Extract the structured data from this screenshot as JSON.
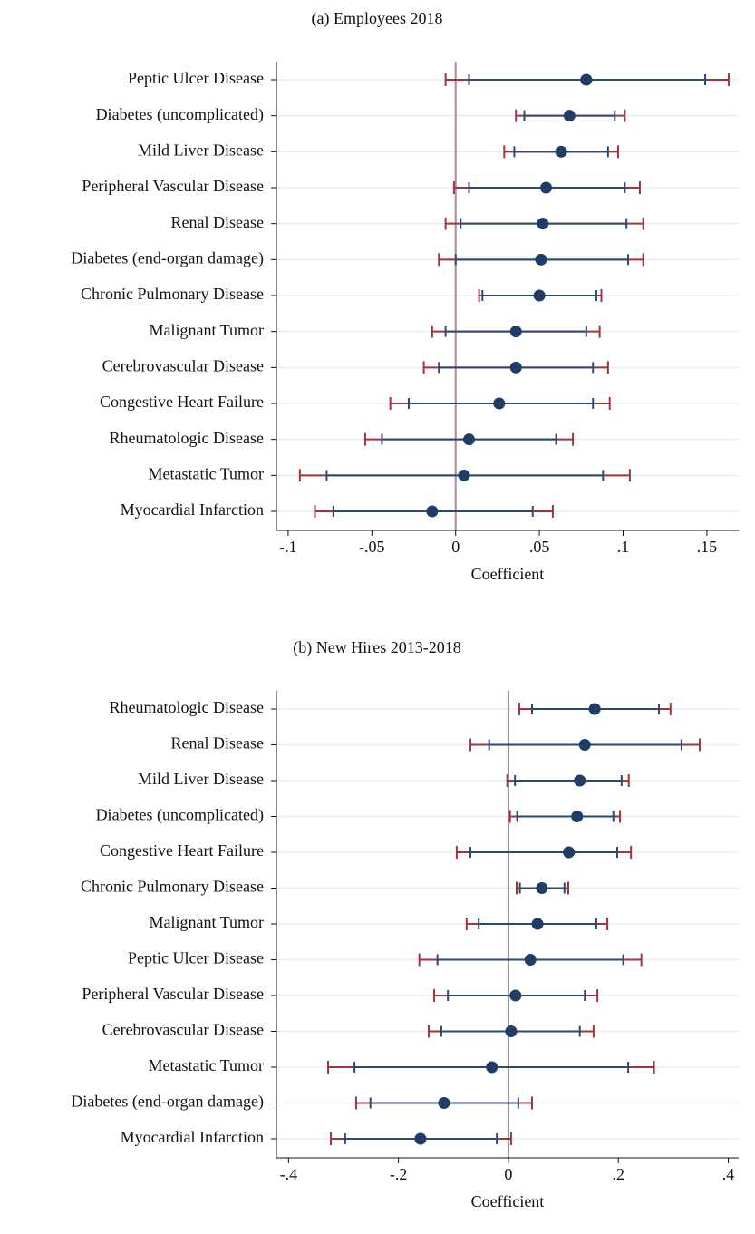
{
  "chart_data": [
    {
      "type": "coefplot",
      "title": "(a) Employees 2018",
      "xlabel": "Coefficient",
      "categories": [
        "Peptic Ulcer Disease",
        "Diabetes (uncomplicated)",
        "Mild Liver Disease",
        "Peripheral Vascular Disease",
        "Renal Disease",
        "Diabetes (end-organ damage)",
        "Chronic Pulmonary Disease",
        "Malignant Tumor",
        "Cerebrovascular Disease",
        "Congestive Heart Failure",
        "Rheumatologic Disease",
        "Metastatic Tumor",
        "Myocardial Infarction"
      ],
      "values": [
        0.078,
        0.068,
        0.063,
        0.054,
        0.052,
        0.051,
        0.05,
        0.036,
        0.036,
        0.026,
        0.008,
        0.005,
        -0.014
      ],
      "inner_low": [
        0.008,
        0.041,
        0.035,
        0.008,
        0.003,
        0.0,
        0.016,
        -0.006,
        -0.01,
        -0.028,
        -0.044,
        -0.077,
        -0.073
      ],
      "inner_high": [
        0.149,
        0.095,
        0.091,
        0.101,
        0.102,
        0.103,
        0.084,
        0.078,
        0.082,
        0.082,
        0.06,
        0.088,
        0.046
      ],
      "outer_low": [
        -0.006,
        0.036,
        0.029,
        -0.001,
        -0.006,
        -0.01,
        0.014,
        -0.014,
        -0.019,
        -0.039,
        -0.054,
        -0.093,
        -0.084
      ],
      "outer_high": [
        0.163,
        0.101,
        0.097,
        0.11,
        0.112,
        0.112,
        0.087,
        0.086,
        0.091,
        0.092,
        0.07,
        0.104,
        0.058
      ],
      "xlim": [
        -0.107,
        0.169
      ],
      "xticks": [
        {
          "value": -0.1,
          "label": "-.1"
        },
        {
          "value": -0.05,
          "label": "-.05"
        },
        0,
        {
          "value": 0.05,
          "label": ".05"
        },
        {
          "value": 0.1,
          "label": ".1"
        },
        {
          "value": 0.15,
          "label": ".15"
        }
      ],
      "point_color": "#1f3d66",
      "inner_color": "#2b4a72",
      "outer_color": "#a3343f",
      "reference_line_color": "#a88c96",
      "grid": true
    },
    {
      "type": "coefplot",
      "title": "(b) New Hires 2013-2018",
      "xlabel": "Coefficient",
      "categories": [
        "Rheumatologic Disease",
        "Renal Disease",
        "Mild Liver Disease",
        "Diabetes (uncomplicated)",
        "Congestive Heart Failure",
        "Chronic Pulmonary Disease",
        "Malignant Tumor",
        "Peptic Ulcer Disease",
        "Peripheral Vascular Disease",
        "Cerebrovascular Disease",
        "Metastatic Tumor",
        "Diabetes (end-organ damage)",
        "Myocardial Infarction"
      ],
      "values": [
        0.157,
        0.139,
        0.13,
        0.125,
        0.11,
        0.061,
        0.053,
        0.04,
        0.013,
        0.005,
        -0.03,
        -0.117,
        -0.16
      ],
      "inner_low": [
        0.043,
        -0.035,
        0.012,
        0.016,
        -0.069,
        0.021,
        -0.054,
        -0.129,
        -0.11,
        -0.122,
        -0.28,
        -0.251,
        -0.297
      ],
      "inner_high": [
        0.274,
        0.315,
        0.206,
        0.191,
        0.198,
        0.102,
        0.16,
        0.209,
        0.139,
        0.13,
        0.218,
        0.018,
        -0.021
      ],
      "outer_low": [
        0.02,
        -0.069,
        -0.002,
        0.003,
        -0.094,
        0.015,
        -0.076,
        -0.162,
        -0.135,
        -0.145,
        -0.328,
        -0.277,
        -0.323
      ],
      "outer_high": [
        0.295,
        0.348,
        0.219,
        0.203,
        0.223,
        0.109,
        0.18,
        0.242,
        0.162,
        0.155,
        0.265,
        0.043,
        0.005
      ],
      "xlim": [
        -0.422,
        0.419
      ],
      "xticks": [
        {
          "value": -0.4,
          "label": "-.4"
        },
        {
          "value": -0.2,
          "label": "-.2"
        },
        0,
        {
          "value": 0.2,
          "label": ".2"
        },
        {
          "value": 0.4,
          "label": ".4"
        }
      ],
      "point_color": "#1f3d66",
      "inner_color": "#2b4a72",
      "outer_color": "#a3343f",
      "reference_line_color": "#8c8c8c",
      "grid": true
    }
  ]
}
